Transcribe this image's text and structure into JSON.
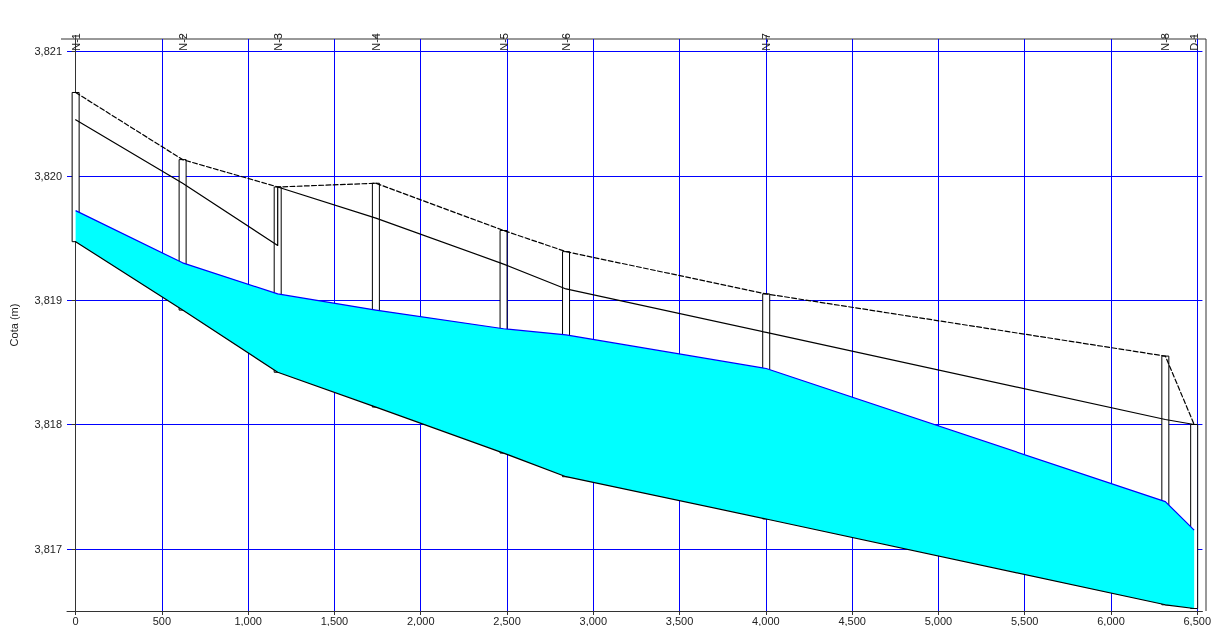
{
  "chart_data": {
    "type": "line",
    "ylabel": "Cota (m)",
    "x": [
      0,
      620,
      1171,
      1740,
      2480,
      2842,
      4002,
      6315,
      6482
    ],
    "series": [
      {
        "type": "bar",
        "color": "#ffffff",
        "base": [
          3819.47,
          3818.92,
          3818.42,
          3818.14,
          3817.77,
          3817.58,
          3817.24,
          3816.55,
          3816.52
        ],
        "values": [
          1.2,
          1.21,
          1.49,
          1.8,
          1.79,
          1.81,
          1.81,
          2.0,
          1.48
        ]
      },
      {
        "color": "#000000",
        "line_style": "dashed",
        "values": [
          3820.67,
          3820.13,
          3819.91,
          3819.94,
          3819.56,
          3819.39,
          3819.05,
          3818.55,
          3818.0
        ]
      },
      {
        "color": "#000000",
        "line_style": "solid",
        "x": [
          0,
          620,
          620,
          1171,
          1171,
          1740,
          2480,
          2842,
          4002,
          6315,
          6482
        ],
        "values": [
          3820.45,
          3819.94,
          3819.94,
          3819.44,
          3819.91,
          3819.66,
          3819.29,
          3819.09,
          3818.74,
          3818.04,
          3818.0
        ]
      },
      {
        "type": "area",
        "color": "#00ffff",
        "values": [
          3819.72,
          3819.3,
          3819.05,
          3818.92,
          3818.77,
          3818.72,
          3818.45,
          3817.38,
          3817.15
        ]
      },
      {
        "color": "#000000",
        "line_style": "solid",
        "values": [
          3819.47,
          3818.92,
          3818.42,
          3818.14,
          3817.77,
          3817.58,
          3817.24,
          3816.55,
          3816.52
        ]
      }
    ],
    "xlim": [
      -50,
      6530
    ],
    "xticks": [
      0,
      500,
      {
        "value": 1000,
        "label": "1,000"
      },
      {
        "value": 1500,
        "label": "1,500"
      },
      {
        "value": 2000,
        "label": "2,000"
      },
      {
        "value": 2500,
        "label": "2,500"
      },
      {
        "value": 3000,
        "label": "3,000"
      },
      {
        "value": 3500,
        "label": "3,500"
      },
      {
        "value": 4000,
        "label": "4,000"
      },
      {
        "value": 4500,
        "label": "4,500"
      },
      {
        "value": 5000,
        "label": "5,000"
      },
      {
        "value": 5500,
        "label": "5,500"
      },
      {
        "value": 6000,
        "label": "6,000"
      },
      {
        "value": 6500,
        "label": "6,500"
      }
    ],
    "annotations": [
      "N-1",
      "N-2",
      "N-3",
      "N-4",
      "N-5",
      "N-6",
      "N-7",
      "N-8",
      "D-1"
    ],
    "ylim": [
      3816.5,
      3821.1
    ],
    "yticks": [
      {
        "value": 3817,
        "label": "3,817"
      },
      {
        "value": 3818,
        "label": "3,818"
      },
      {
        "value": 3819,
        "label": "3,819"
      },
      {
        "value": 3820,
        "label": "3,820"
      },
      {
        "value": 3821,
        "label": "3,821"
      }
    ],
    "grid": true,
    "marker": "none"
  }
}
